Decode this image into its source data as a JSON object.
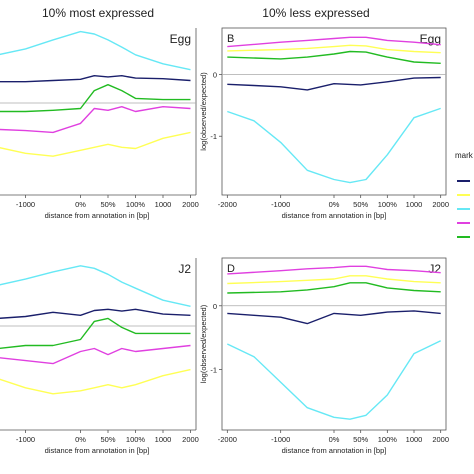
{
  "column_titles": [
    "10% most expressed",
    "10% less expressed"
  ],
  "legend": {
    "title": "mark",
    "colors": [
      "#1a1f6b",
      "#ffff55",
      "#66e8f5",
      "#e040e0",
      "#22bb22"
    ]
  },
  "colors": {
    "navy": "#1a1f6b",
    "yellow": "#ffff55",
    "cyan": "#66e8f5",
    "magenta": "#e040e0",
    "green": "#22bb22"
  },
  "chart_data": [
    {
      "type": "line",
      "panel_letter": "",
      "label": "Egg",
      "xlabel": "distance from annotation in [bp]",
      "ylabel": "",
      "xticks": [
        "-1000",
        "0%",
        "50%",
        "100%",
        "1000",
        "2000"
      ],
      "yticks": [],
      "xlim": [
        -1500,
        2100
      ],
      "ylim": [
        -1.9,
        0.9
      ],
      "series": [
        {
          "color": "#66e8f5",
          "x": [
            -1500,
            -1000,
            -500,
            0,
            250,
            500,
            750,
            1000,
            1500,
            2000
          ],
          "y": [
            0.45,
            0.55,
            0.7,
            0.84,
            0.8,
            0.7,
            0.58,
            0.45,
            0.3,
            0.2
          ]
        },
        {
          "color": "#1a1f6b",
          "x": [
            -1500,
            -1000,
            -500,
            0,
            250,
            500,
            750,
            1000,
            1500,
            2000
          ],
          "y": [
            0.0,
            0.0,
            0.02,
            0.04,
            0.1,
            0.08,
            0.1,
            0.06,
            0.05,
            0.02
          ]
        },
        {
          "color": "#22bb22",
          "x": [
            -1500,
            -1000,
            -500,
            0,
            250,
            500,
            750,
            1000,
            1500,
            2000
          ],
          "y": [
            -0.5,
            -0.5,
            -0.48,
            -0.45,
            -0.15,
            -0.05,
            -0.15,
            -0.28,
            -0.3,
            -0.3
          ]
        },
        {
          "color": "#e040e0",
          "x": [
            -1500,
            -1000,
            -500,
            0,
            250,
            500,
            750,
            1000,
            1500,
            2000
          ],
          "y": [
            -0.8,
            -0.82,
            -0.85,
            -0.7,
            -0.45,
            -0.48,
            -0.42,
            -0.5,
            -0.42,
            -0.45
          ]
        },
        {
          "color": "#ffff55",
          "x": [
            -1500,
            -1000,
            -500,
            0,
            250,
            500,
            750,
            1000,
            1500,
            2000
          ],
          "y": [
            -1.1,
            -1.2,
            -1.25,
            -1.15,
            -1.1,
            -1.05,
            -1.1,
            -1.12,
            -0.95,
            -0.85
          ]
        }
      ]
    },
    {
      "type": "line",
      "panel_letter": "B",
      "label": "Egg",
      "xlabel": "distance from annotation in [bp]",
      "ylabel": "log(observed/expected)",
      "xticks": [
        "-2000",
        "-1000",
        "0%",
        "50%",
        "100%",
        "1000",
        "2000"
      ],
      "yticks": [
        "0",
        "-1"
      ],
      "xlim": [
        -2100,
        2100
      ],
      "ylim": [
        -1.95,
        0.75
      ],
      "series": [
        {
          "color": "#e040e0",
          "x": [
            -2000,
            -1000,
            -500,
            0,
            300,
            600,
            1000,
            1500,
            2000
          ],
          "y": [
            0.45,
            0.52,
            0.55,
            0.58,
            0.6,
            0.6,
            0.55,
            0.52,
            0.48
          ]
        },
        {
          "color": "#ffff55",
          "x": [
            -2000,
            -1000,
            -500,
            0,
            300,
            600,
            1000,
            1500,
            2000
          ],
          "y": [
            0.38,
            0.4,
            0.42,
            0.45,
            0.47,
            0.46,
            0.4,
            0.37,
            0.35
          ]
        },
        {
          "color": "#22bb22",
          "x": [
            -2000,
            -1000,
            -500,
            0,
            300,
            600,
            1000,
            1500,
            2000
          ],
          "y": [
            0.28,
            0.25,
            0.28,
            0.33,
            0.37,
            0.36,
            0.28,
            0.2,
            0.18
          ]
        },
        {
          "color": "#1a1f6b",
          "x": [
            -2000,
            -1500,
            -1000,
            -500,
            0,
            500,
            1000,
            1500,
            2000
          ],
          "y": [
            -0.16,
            -0.18,
            -0.2,
            -0.25,
            -0.15,
            -0.17,
            -0.12,
            -0.06,
            -0.05
          ]
        },
        {
          "color": "#66e8f5",
          "x": [
            -2000,
            -1500,
            -1000,
            -500,
            0,
            300,
            600,
            1000,
            1500,
            2000
          ],
          "y": [
            -0.6,
            -0.75,
            -1.1,
            -1.55,
            -1.7,
            -1.75,
            -1.7,
            -1.3,
            -0.7,
            -0.55
          ]
        }
      ]
    },
    {
      "type": "line",
      "panel_letter": "",
      "label": "J2",
      "xlabel": "distance from annotation in [bp]",
      "ylabel": "",
      "xticks": [
        "-1000",
        "0%",
        "50%",
        "100%",
        "1000",
        "2000"
      ],
      "yticks": [],
      "xlim": [
        -1500,
        2100
      ],
      "ylim": [
        -1.9,
        0.95
      ],
      "series": [
        {
          "color": "#66e8f5",
          "x": [
            -1500,
            -1000,
            -500,
            0,
            250,
            500,
            750,
            1000,
            1500,
            2000
          ],
          "y": [
            0.5,
            0.6,
            0.72,
            0.82,
            0.78,
            0.68,
            0.55,
            0.45,
            0.25,
            0.15
          ]
        },
        {
          "color": "#1a1f6b",
          "x": [
            -1500,
            -1000,
            -500,
            0,
            250,
            500,
            750,
            1000,
            1500,
            2000
          ],
          "y": [
            -0.05,
            -0.02,
            0.05,
            0.0,
            0.08,
            0.1,
            0.07,
            0.1,
            0.02,
            0.0
          ]
        },
        {
          "color": "#22bb22",
          "x": [
            -1500,
            -1000,
            -500,
            0,
            250,
            500,
            750,
            1000,
            1500,
            2000
          ],
          "y": [
            -0.55,
            -0.5,
            -0.5,
            -0.4,
            -0.1,
            -0.05,
            -0.2,
            -0.3,
            -0.3,
            -0.3
          ]
        },
        {
          "color": "#e040e0",
          "x": [
            -1500,
            -1000,
            -500,
            0,
            250,
            500,
            750,
            1000,
            1500,
            2000
          ],
          "y": [
            -0.7,
            -0.75,
            -0.8,
            -0.6,
            -0.55,
            -0.65,
            -0.55,
            -0.6,
            -0.55,
            -0.5
          ]
        },
        {
          "color": "#ffff55",
          "x": [
            -1500,
            -1000,
            -500,
            0,
            250,
            500,
            750,
            1000,
            1500,
            2000
          ],
          "y": [
            -1.05,
            -1.2,
            -1.3,
            -1.25,
            -1.2,
            -1.15,
            -1.2,
            -1.15,
            -1.0,
            -0.9
          ]
        }
      ]
    },
    {
      "type": "line",
      "panel_letter": "D",
      "label": "J2",
      "xlabel": "distance from annotation in [bp]",
      "ylabel": "log(observed/expected)",
      "xticks": [
        "-2000",
        "-1000",
        "0%",
        "50%",
        "100%",
        "1000",
        "2000"
      ],
      "yticks": [
        "0",
        "-1"
      ],
      "xlim": [
        -2100,
        2100
      ],
      "ylim": [
        -1.95,
        0.75
      ],
      "series": [
        {
          "color": "#e040e0",
          "x": [
            -2000,
            -1000,
            -500,
            0,
            300,
            600,
            1000,
            1500,
            2000
          ],
          "y": [
            0.5,
            0.55,
            0.58,
            0.6,
            0.62,
            0.62,
            0.57,
            0.55,
            0.52
          ]
        },
        {
          "color": "#ffff55",
          "x": [
            -2000,
            -1000,
            -500,
            0,
            300,
            600,
            1000,
            1500,
            2000
          ],
          "y": [
            0.35,
            0.38,
            0.4,
            0.42,
            0.47,
            0.47,
            0.42,
            0.38,
            0.36
          ]
        },
        {
          "color": "#22bb22",
          "x": [
            -2000,
            -1000,
            -500,
            0,
            300,
            600,
            1000,
            1500,
            2000
          ],
          "y": [
            0.2,
            0.22,
            0.25,
            0.3,
            0.36,
            0.36,
            0.28,
            0.24,
            0.22
          ]
        },
        {
          "color": "#1a1f6b",
          "x": [
            -2000,
            -1500,
            -1000,
            -500,
            0,
            500,
            1000,
            1500,
            2000
          ],
          "y": [
            -0.12,
            -0.15,
            -0.18,
            -0.28,
            -0.12,
            -0.15,
            -0.1,
            -0.08,
            -0.12
          ]
        },
        {
          "color": "#66e8f5",
          "x": [
            -2000,
            -1500,
            -1000,
            -500,
            0,
            300,
            600,
            1000,
            1500,
            2000
          ],
          "y": [
            -0.6,
            -0.8,
            -1.2,
            -1.6,
            -1.75,
            -1.78,
            -1.72,
            -1.4,
            -0.75,
            -0.55
          ]
        }
      ]
    }
  ]
}
